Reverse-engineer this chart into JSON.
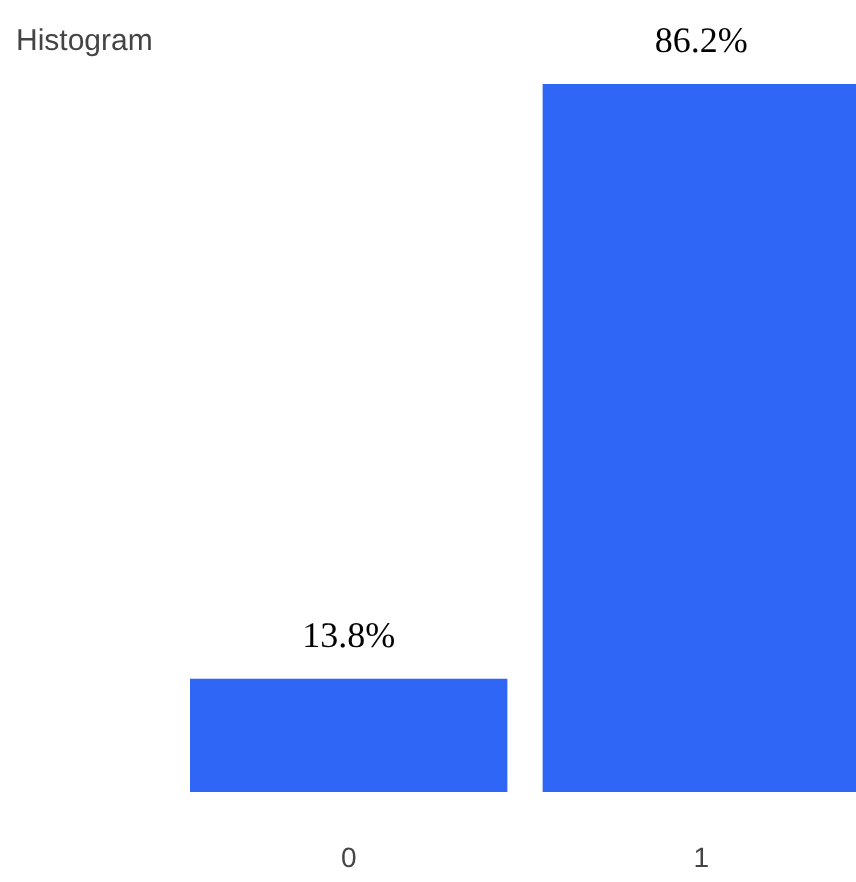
{
  "chart_data": {
    "type": "bar",
    "title": "Histogram",
    "categories": [
      "0",
      "1"
    ],
    "values": [
      13.8,
      86.2
    ],
    "value_labels": [
      "13.8%",
      "86.2%"
    ],
    "color": "#2f66f5"
  }
}
